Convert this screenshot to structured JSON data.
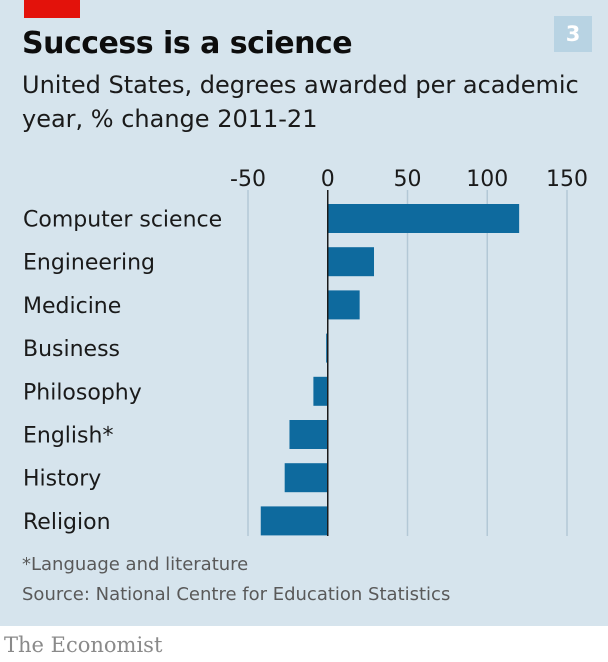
{
  "header": {
    "title": "Success is a science",
    "chart_number": "3",
    "subtitle": "United States, degrees awarded per academic year, % change 2011-21"
  },
  "footer": {
    "footnote": "*Language and literature",
    "source": "Source: National Centre for Education Statistics",
    "brand": "The Economist"
  },
  "colors": {
    "bar": "#0e6a9e",
    "background": "#d6e4ed",
    "accent": "#e3120b"
  },
  "chart_data": {
    "type": "bar",
    "orientation": "horizontal",
    "title": "Success is a science",
    "subtitle": "United States, degrees awarded per academic year, % change 2011-21",
    "categories": [
      "Computer science",
      "Engineering",
      "Medicine",
      "Business",
      "Philosophy",
      "English*",
      "History",
      "Religion"
    ],
    "values": [
      120,
      29,
      20,
      -1,
      -9,
      -24,
      -27,
      -42
    ],
    "xlim": [
      -50,
      150
    ],
    "xticks": [
      "-50",
      "0",
      "50",
      "100",
      "150"
    ],
    "tick_values": [
      -50,
      0,
      50,
      100,
      150
    ],
    "grid": true
  }
}
